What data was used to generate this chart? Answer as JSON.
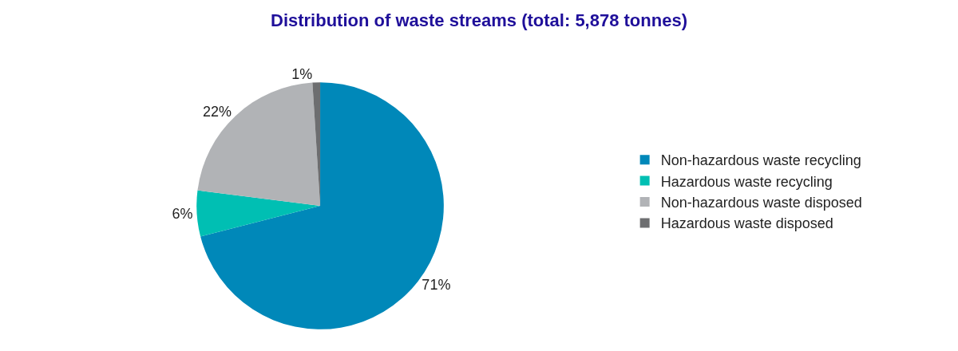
{
  "chart_data": {
    "type": "pie",
    "title": "Distribution of waste streams (total: 5,878 tonnes)",
    "categories": [
      "Non-hazardous waste recycling",
      "Hazardous waste recycling",
      "Non-hazardous waste disposed",
      "Hazardous waste disposed"
    ],
    "values": [
      71,
      6,
      22,
      1
    ],
    "colors": [
      "#0088b9",
      "#00bfb3",
      "#b1b3b6",
      "#6d6e70"
    ],
    "value_labels": [
      "71%",
      "6%",
      "22%",
      "1%"
    ],
    "legend": "right"
  }
}
